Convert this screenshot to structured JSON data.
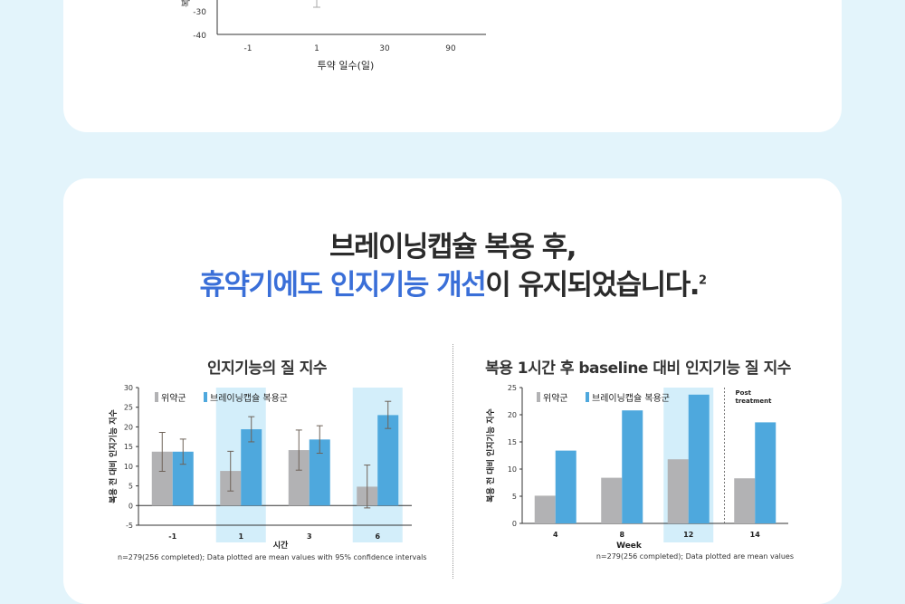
{
  "top_chart": {
    "y_axis_label_partial": "복",
    "y_ticks": [
      "-30",
      "-40"
    ],
    "x_ticks": [
      "-1",
      "1",
      "30",
      "90"
    ],
    "xlabel": "투약 일수(일)"
  },
  "headline": {
    "line1": "브레이닝캡슐 복용 후,",
    "line2_highlight": "휴약기에도 인지기능 개선",
    "line2_rest": "이 유지되었습니다.",
    "line2_sup": "2"
  },
  "colors": {
    "placebo": "#b2b2b4",
    "drug": "#4ea8dd",
    "highlight": "#d3eefa",
    "title_blue": "#3a6fd8"
  },
  "chart_data": [
    {
      "type": "bar",
      "title": "인지기능의 질 지수",
      "xlabel": "시간",
      "ylabel": "복용 전 대비 인지기능 지수",
      "categories": [
        "-1",
        "1",
        "3",
        "6"
      ],
      "series": [
        {
          "name": "위약군",
          "values": [
            13.7,
            8.8,
            14.1,
            4.8
          ],
          "ci_low": [
            8.7,
            3.7,
            9.0,
            -0.6
          ],
          "ci_high": [
            18.6,
            13.8,
            19.2,
            10.3
          ]
        },
        {
          "name": "브레이닝캡슐 복용군",
          "values": [
            13.7,
            19.4,
            16.8,
            23.0
          ],
          "ci_low": [
            10.5,
            16.2,
            13.3,
            19.6
          ],
          "ci_high": [
            16.9,
            22.6,
            20.3,
            26.5
          ]
        }
      ],
      "highlighted_categories": [
        "1",
        "6"
      ],
      "ylim": [
        -5,
        30
      ],
      "y_ticks": [
        -5,
        0,
        5,
        10,
        15,
        20,
        25,
        30
      ],
      "legend": "top-left",
      "footnote": "n=279(256 completed); Data plotted are mean values with 95% confidence intervals"
    },
    {
      "type": "bar",
      "title": "복용 1시간 후 baseline 대비 인지기능 질 지수",
      "xlabel": "Week",
      "ylabel": "복용 전 대비 인지기능 지수",
      "categories": [
        "4",
        "8",
        "12",
        "14"
      ],
      "series": [
        {
          "name": "위약군",
          "values": [
            5.1,
            8.4,
            11.8,
            8.3
          ]
        },
        {
          "name": "브레이닝캡슐 복용군",
          "values": [
            13.4,
            20.8,
            23.7,
            18.6
          ]
        }
      ],
      "highlighted_categories": [
        "12"
      ],
      "annotation": "Post\ntreatment",
      "ylim": [
        0,
        25
      ],
      "y_ticks": [
        0,
        5,
        10,
        15,
        20,
        25
      ],
      "legend": "top-left",
      "footnote": "n=279(256 completed); Data plotted are mean values"
    }
  ]
}
